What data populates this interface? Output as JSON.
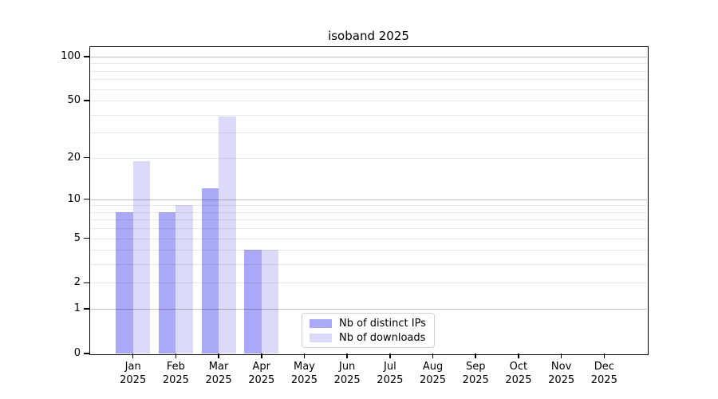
{
  "title": "isoband 2025",
  "chart_data": {
    "type": "bar",
    "title": "isoband 2025",
    "x_categories": [
      "Jan",
      "Feb",
      "Mar",
      "Apr",
      "May",
      "Jun",
      "Jul",
      "Aug",
      "Sep",
      "Oct",
      "Nov",
      "Dec"
    ],
    "x_year": "2025",
    "series": [
      {
        "name": "Nb of distinct IPs",
        "color": "#a9a9f7",
        "values": [
          8,
          8,
          12,
          4,
          null,
          null,
          null,
          null,
          null,
          null,
          null,
          null
        ]
      },
      {
        "name": "Nb of downloads",
        "color": "#dbdbf9",
        "values": [
          19,
          9,
          39,
          4,
          null,
          null,
          null,
          null,
          null,
          null,
          null,
          null
        ]
      }
    ],
    "y_axis": {
      "scale": "log1p",
      "ylim": [
        0,
        100
      ],
      "tick_labels": [
        0,
        1,
        2,
        5,
        10,
        20,
        50,
        100
      ],
      "major_gridlines": [
        1,
        10,
        100
      ],
      "minor_gridlines": [
        2,
        3,
        4,
        5,
        6,
        7,
        8,
        9,
        20,
        30,
        40,
        50,
        60,
        70,
        80,
        90
      ]
    },
    "legend": {
      "position": "lower center",
      "entries": [
        "Nb of distinct IPs",
        "Nb of downloads"
      ]
    },
    "grid": true
  }
}
